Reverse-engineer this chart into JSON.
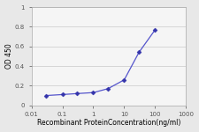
{
  "x": [
    0.03,
    0.1,
    0.3,
    1,
    3,
    10,
    30,
    100
  ],
  "y": [
    0.1,
    0.11,
    0.12,
    0.13,
    0.17,
    0.26,
    0.54,
    0.77
  ],
  "line_color": "#5555cc",
  "marker_color": "#3333aa",
  "marker": "D",
  "marker_size": 2.5,
  "line_width": 0.9,
  "xlabel": "Recombinant ProteinConcentration(ng/ml)",
  "ylabel": "OD 450",
  "xlim": [
    0.01,
    1000
  ],
  "ylim": [
    0,
    1.0
  ],
  "yticks": [
    0,
    0.2,
    0.4,
    0.6,
    0.8,
    1
  ],
  "ytick_labels": [
    "0",
    "0.2",
    "0.4",
    "0.6",
    "0.8",
    "1"
  ],
  "xtick_vals": [
    0.01,
    0.1,
    1,
    10,
    100,
    1000
  ],
  "xtick_labels": [
    "0.01",
    "0.1",
    "1",
    "10",
    "100",
    "1000"
  ],
  "bg_color": "#e8e8e8",
  "plot_bg_color": "#f5f5f5",
  "grid_color": "#d0d0d0",
  "spine_color": "#aaaaaa",
  "xlabel_fontsize": 5.5,
  "ylabel_fontsize": 5.5,
  "tick_fontsize": 5.0
}
